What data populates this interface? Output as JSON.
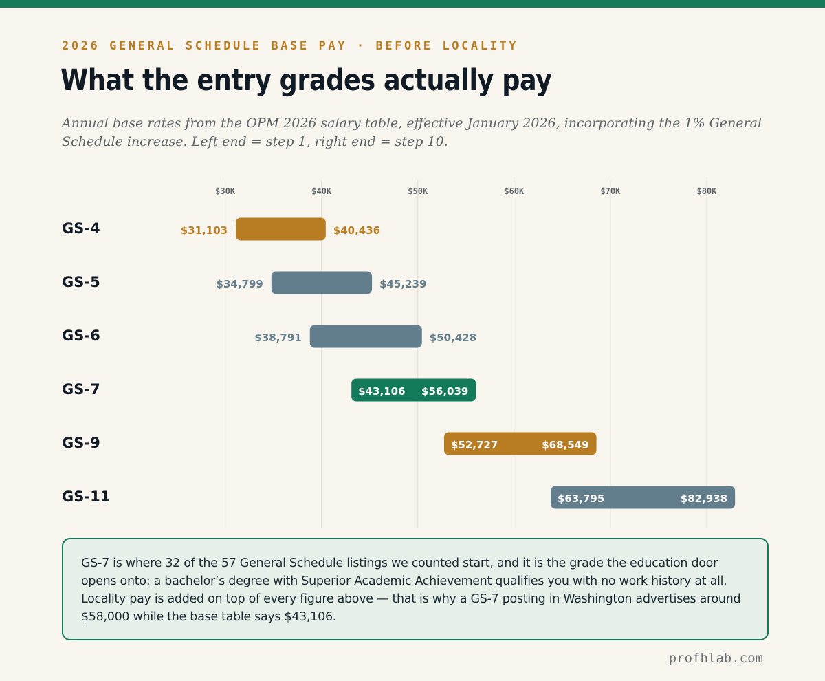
{
  "header": {
    "eyebrow": "2026 GENERAL SCHEDULE BASE PAY · BEFORE LOCALITY",
    "title": "What the entry grades actually pay",
    "subtitle": "Annual base rates from the OPM 2026 salary table, effective January 2026, incorporating the 1% General Schedule increase. Left end = step 1, right end = step 10."
  },
  "chart_data": {
    "type": "bar",
    "orientation": "horizontal-range",
    "x_ticks": [
      30000,
      40000,
      50000,
      60000,
      70000,
      80000
    ],
    "x_tick_labels": [
      "$30K",
      "$40K",
      "$50K",
      "$60K",
      "$70K",
      "$80K"
    ],
    "xlim": [
      25600,
      85000
    ],
    "grid": true,
    "categories": [
      "GS-4",
      "GS-5",
      "GS-6",
      "GS-7",
      "GS-9",
      "GS-11"
    ],
    "series": [
      {
        "values": [
          {
            "grade": "GS-4",
            "step1": 31103,
            "step10": 40436,
            "step1_label": "$31,103",
            "step10_label": "$40,436",
            "color": "#b87c22",
            "labels_inside": false
          },
          {
            "grade": "GS-5",
            "step1": 34799,
            "step10": 45239,
            "step1_label": "$34,799",
            "step10_label": "$45,239",
            "color": "#627d8c",
            "labels_inside": false
          },
          {
            "grade": "GS-6",
            "step1": 38791,
            "step10": 50428,
            "step1_label": "$38,791",
            "step10_label": "$50,428",
            "color": "#627d8c",
            "labels_inside": false
          },
          {
            "grade": "GS-7",
            "step1": 43106,
            "step10": 56039,
            "step1_label": "$43,106",
            "step10_label": "$56,039",
            "color": "#137a5b",
            "labels_inside": true
          },
          {
            "grade": "GS-9",
            "step1": 52727,
            "step10": 68549,
            "step1_label": "$52,727",
            "step10_label": "$68,549",
            "color": "#b87c22",
            "labels_inside": true
          },
          {
            "grade": "GS-11",
            "step1": 63795,
            "step10": 82938,
            "step1_label": "$63,795",
            "step10_label": "$82,938",
            "color": "#627d8c",
            "labels_inside": true
          }
        ]
      }
    ],
    "title": "",
    "xlabel": "",
    "ylabel": ""
  },
  "note": {
    "text": "GS-7 is where 32 of the 57 General Schedule listings we counted start, and it is the grade the education door opens onto: a bachelor’s degree with Superior Academic Achievement qualifies you with no work history at all. Locality pay is added on top of every figure above — that is why a GS-7 posting in Washington advertises around $58,000 while the base table says $43,106."
  },
  "footer": {
    "site": "profhlab.com"
  }
}
